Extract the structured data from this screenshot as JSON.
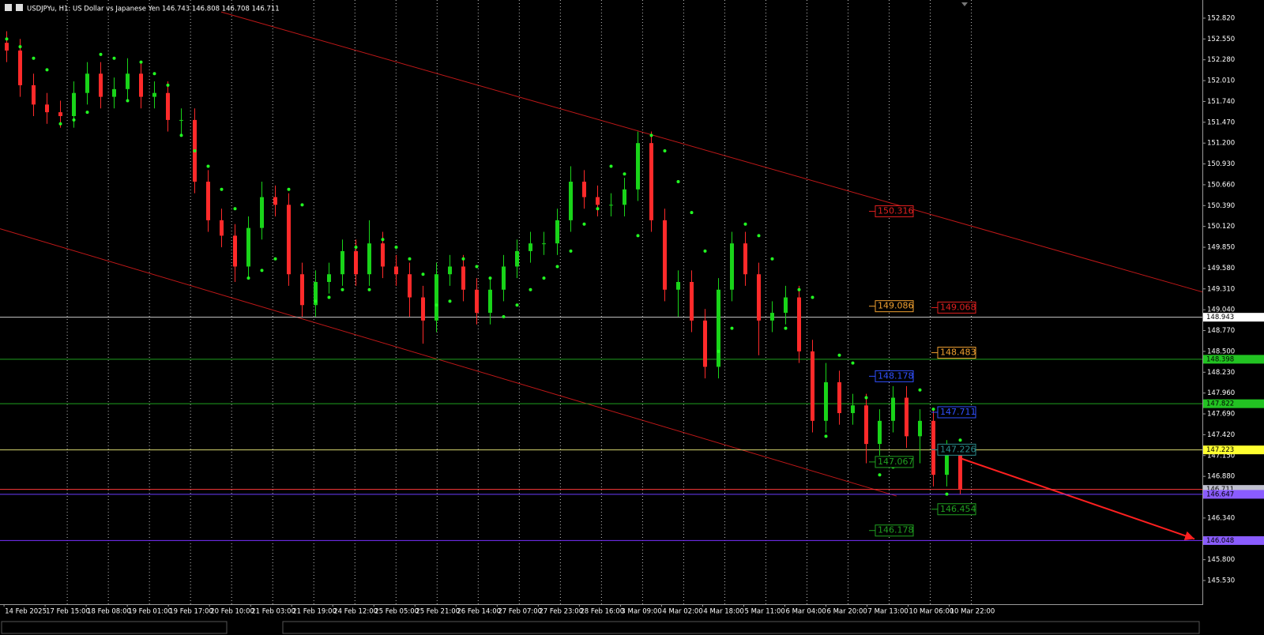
{
  "chart_data": {
    "type": "candlestick",
    "title": "USDJPYu, H1:  US Dollar vs Japanese Yen  146.743 146.808 146.708 146.711",
    "up_color": "#19d419",
    "down_color": "#ff2a2a",
    "x": [
      0,
      1,
      2,
      3,
      4,
      5,
      6,
      7,
      8,
      9,
      10,
      11,
      12,
      13,
      14,
      15,
      16,
      17,
      18,
      19,
      20,
      21,
      22,
      23,
      24,
      25,
      26,
      27,
      28,
      29,
      30,
      31,
      32,
      33,
      34,
      35,
      36,
      37,
      38,
      39,
      40,
      41,
      42,
      43,
      44,
      45,
      46,
      47,
      48,
      49,
      50,
      51,
      52,
      53,
      54,
      55,
      56,
      57,
      58,
      59,
      60,
      61,
      62,
      63,
      64,
      65,
      66,
      67,
      68,
      69,
      70,
      71
    ],
    "open": [
      152.5,
      152.4,
      151.95,
      151.7,
      151.6,
      151.55,
      151.85,
      152.1,
      151.8,
      151.9,
      152.1,
      151.8,
      151.85,
      151.5,
      151.5,
      150.7,
      150.2,
      150.0,
      149.6,
      150.1,
      150.5,
      150.4,
      149.5,
      149.1,
      149.4,
      149.5,
      149.8,
      149.5,
      149.9,
      149.6,
      149.5,
      149.2,
      148.9,
      149.5,
      149.6,
      149.3,
      149.0,
      149.3,
      149.6,
      149.8,
      149.9,
      149.9,
      150.2,
      150.7,
      150.5,
      150.4,
      150.4,
      150.6,
      151.2,
      150.2,
      149.3,
      149.4,
      148.9,
      148.3,
      149.3,
      149.9,
      149.5,
      148.9,
      149.0,
      149.2,
      148.5,
      147.6,
      148.1,
      147.7,
      147.8,
      147.3,
      147.6,
      147.9,
      147.4,
      147.6,
      146.9,
      147.2
    ],
    "high": [
      152.65,
      152.55,
      152.1,
      151.85,
      151.75,
      152.0,
      152.25,
      152.25,
      152.05,
      152.3,
      152.25,
      152.0,
      152.0,
      151.65,
      151.65,
      150.85,
      150.35,
      150.15,
      150.25,
      150.7,
      150.65,
      150.55,
      149.65,
      149.55,
      149.65,
      149.95,
      149.95,
      150.2,
      150.05,
      149.75,
      149.65,
      149.35,
      149.65,
      149.75,
      149.75,
      149.45,
      149.45,
      149.75,
      149.95,
      150.05,
      150.05,
      150.35,
      150.9,
      150.85,
      150.65,
      150.55,
      150.75,
      151.35,
      151.35,
      150.35,
      149.55,
      149.55,
      149.05,
      149.45,
      150.05,
      150.05,
      149.65,
      149.15,
      149.35,
      149.35,
      148.65,
      148.35,
      148.25,
      147.95,
      147.95,
      147.75,
      148.05,
      148.05,
      147.75,
      147.75,
      147.35,
      147.3
    ],
    "low": [
      152.25,
      151.8,
      151.55,
      151.45,
      151.4,
      151.4,
      151.7,
      151.65,
      151.65,
      151.75,
      151.65,
      151.65,
      151.35,
      151.3,
      150.55,
      150.05,
      149.85,
      149.4,
      149.45,
      149.95,
      150.25,
      149.35,
      148.95,
      148.95,
      149.25,
      149.35,
      149.35,
      149.35,
      149.45,
      149.35,
      148.95,
      148.6,
      148.75,
      149.35,
      149.15,
      148.85,
      148.85,
      149.15,
      149.45,
      149.65,
      149.75,
      149.75,
      150.05,
      150.35,
      150.25,
      150.25,
      150.25,
      150.45,
      150.05,
      149.15,
      148.95,
      148.75,
      148.15,
      148.15,
      149.15,
      149.35,
      148.45,
      148.75,
      148.85,
      148.35,
      147.45,
      147.45,
      147.55,
      147.55,
      147.05,
      147.15,
      147.45,
      147.25,
      147.05,
      146.75,
      146.75,
      146.65
    ],
    "close": [
      152.4,
      151.95,
      151.7,
      151.6,
      151.55,
      151.85,
      152.1,
      151.8,
      151.9,
      152.1,
      151.8,
      151.85,
      151.5,
      151.5,
      150.7,
      150.2,
      150.0,
      149.6,
      150.1,
      150.5,
      150.4,
      149.5,
      149.1,
      149.4,
      149.5,
      149.8,
      149.5,
      149.9,
      149.6,
      149.5,
      149.2,
      148.9,
      149.5,
      149.6,
      149.3,
      149.0,
      149.3,
      149.6,
      149.8,
      149.9,
      149.9,
      150.2,
      150.7,
      150.5,
      150.4,
      150.4,
      150.6,
      151.2,
      150.2,
      149.3,
      149.4,
      148.9,
      148.3,
      149.3,
      149.9,
      149.5,
      148.9,
      149.0,
      149.2,
      148.5,
      147.6,
      148.1,
      147.7,
      147.8,
      147.3,
      147.6,
      147.9,
      147.4,
      147.6,
      146.9,
      147.2,
      146.711
    ],
    "sar": {
      "color": "#22ff22",
      "values": [
        152.55,
        152.45,
        152.3,
        152.15,
        151.45,
        151.5,
        151.6,
        152.35,
        152.3,
        151.75,
        152.25,
        152.1,
        151.95,
        151.3,
        151.1,
        150.9,
        150.6,
        150.35,
        149.45,
        149.55,
        149.7,
        150.6,
        150.4,
        149.15,
        149.2,
        149.3,
        149.85,
        149.3,
        149.95,
        149.85,
        149.7,
        149.5,
        149.1,
        149.15,
        149.7,
        149.6,
        149.45,
        148.95,
        149.1,
        149.3,
        149.45,
        149.6,
        149.8,
        150.15,
        150.35,
        150.9,
        150.8,
        150.0,
        151.3,
        151.1,
        150.7,
        150.3,
        149.8,
        148.5,
        148.8,
        150.15,
        150.0,
        149.7,
        148.8,
        149.3,
        149.2,
        147.4,
        148.45,
        148.35,
        147.9,
        146.9,
        147.0,
        148.2,
        148.0,
        147.75,
        146.65,
        147.35
      ]
    },
    "levels": [
      {
        "value": 148.943,
        "color": "#c8c8c8",
        "label_bg": "#ffffff",
        "label_color": "#000000"
      },
      {
        "value": 148.398,
        "color": "#1f9f1f",
        "label_bg": "#22c322",
        "label_color": "#000000"
      },
      {
        "value": 147.822,
        "color": "#1f9f1f",
        "label_bg": "#22c322",
        "label_color": "#000000"
      },
      {
        "value": 147.223,
        "color": "#d8d870",
        "label_bg": "#ffff30",
        "label_color": "#000000"
      },
      {
        "value": 146.711,
        "color": "#ff3a3a",
        "label_bg": "#c0c0d0",
        "label_color": "#000000"
      },
      {
        "value": 146.647,
        "color": "#6a3cff",
        "label_bg": "#8a5cff",
        "label_color": "#000000"
      },
      {
        "value": 146.048,
        "color": "#7a30ff",
        "label_bg": "#8a5cff",
        "label_color": "#000000"
      }
    ],
    "price_labels": [
      [
        {
          "value": 150.316,
          "color": "#e02020"
        },
        {
          "value": 149.086,
          "color": "#f0a030"
        },
        {
          "value": 148.178,
          "color": "#3050ff"
        },
        {
          "value": 147.067,
          "color": "#20a020"
        },
        {
          "value": 146.178,
          "color": "#20a020"
        }
      ],
      [
        {
          "value": 149.068,
          "color": "#e02020"
        },
        {
          "value": 148.483,
          "color": "#f0a030"
        },
        {
          "value": 147.711,
          "color": "#3050ff"
        },
        {
          "value": 147.226,
          "color": "#2a8a8a"
        },
        {
          "value": 146.454,
          "color": "#20a020"
        }
      ]
    ],
    "trendlines": [
      {
        "color": "#c01818",
        "x": [
          15.97,
          89.03
        ],
        "y": [
          152.9,
          149.27
        ]
      },
      {
        "color": "#c01818",
        "x": [
          -0.5,
          66.26
        ],
        "y": [
          150.09,
          146.625
        ]
      },
      {
        "color": "#ff2020",
        "x": [
          70.97,
          88.44
        ],
        "y": [
          147.117,
          146.07
        ],
        "arrow": true
      }
    ],
    "xlim": [
      -0.5,
      89.03
    ],
    "ylim": [
      145.223,
      153.055
    ],
    "xticks": [
      {
        "value": -0.2,
        "label": "14 Feb 2025"
      },
      {
        "value": 2.86,
        "label": "17 Feb 15:00"
      },
      {
        "value": 5.92,
        "label": "18 Feb 08:00"
      },
      {
        "value": 8.98,
        "label": "19 Feb 01:00"
      },
      {
        "value": 12.04,
        "label": "19 Feb 17:00"
      },
      {
        "value": 15.1,
        "label": "20 Feb 10:00"
      },
      {
        "value": 18.16,
        "label": "21 Feb 03:00"
      },
      {
        "value": 21.22,
        "label": "21 Feb 19:00"
      },
      {
        "value": 24.28,
        "label": "24 Feb 12:00"
      },
      {
        "value": 27.34,
        "label": "25 Feb 05:00"
      },
      {
        "value": 30.4,
        "label": "25 Feb 21:00"
      },
      {
        "value": 33.46,
        "label": "26 Feb 14:00"
      },
      {
        "value": 36.52,
        "label": "27 Feb 07:00"
      },
      {
        "value": 39.58,
        "label": "27 Feb 23:00"
      },
      {
        "value": 42.64,
        "label": "28 Feb 16:00"
      },
      {
        "value": 45.7,
        "label": "3 Mar 09:00"
      },
      {
        "value": 48.76,
        "label": "4 Mar 02:00"
      },
      {
        "value": 51.82,
        "label": "4 Mar 18:00"
      },
      {
        "value": 54.88,
        "label": "5 Mar 11:00"
      },
      {
        "value": 57.94,
        "label": "6 Mar 04:00"
      },
      {
        "value": 61.0,
        "label": "6 Mar 20:00"
      },
      {
        "value": 64.06,
        "label": "7 Mar 13:00"
      },
      {
        "value": 67.12,
        "label": "10 Mar 06:00"
      },
      {
        "value": 70.18,
        "label": "10 Mar 22:00"
      }
    ],
    "yticks": [
      {
        "value": 152.82,
        "label": "152.820"
      },
      {
        "value": 152.55,
        "label": "152.550"
      },
      {
        "value": 152.28,
        "label": "152.280"
      },
      {
        "value": 152.01,
        "label": "152.010"
      },
      {
        "value": 151.74,
        "label": "151.740"
      },
      {
        "value": 151.47,
        "label": "151.470"
      },
      {
        "value": 151.2,
        "label": "151.200"
      },
      {
        "value": 150.93,
        "label": "150.930"
      },
      {
        "value": 150.66,
        "label": "150.660"
      },
      {
        "value": 150.39,
        "label": "150.390"
      },
      {
        "value": 150.12,
        "label": "150.120"
      },
      {
        "value": 149.85,
        "label": "149.850"
      },
      {
        "value": 149.58,
        "label": "149.580"
      },
      {
        "value": 149.31,
        "label": "149.310"
      },
      {
        "value": 149.04,
        "label": "149.040"
      },
      {
        "value": 148.77,
        "label": "148.770"
      },
      {
        "value": 148.5,
        "label": "148.500"
      },
      {
        "value": 148.23,
        "label": "148.230"
      },
      {
        "value": 147.96,
        "label": "147.960"
      },
      {
        "value": 147.69,
        "label": "147.690"
      },
      {
        "value": 147.42,
        "label": "147.420"
      },
      {
        "value": 147.15,
        "label": "147.150"
      },
      {
        "value": 146.88,
        "label": "146.880"
      },
      {
        "value": 146.34,
        "label": "146.340"
      },
      {
        "value": 145.8,
        "label": "145.800"
      },
      {
        "value": 145.53,
        "label": "145.530"
      }
    ],
    "grid": true
  }
}
